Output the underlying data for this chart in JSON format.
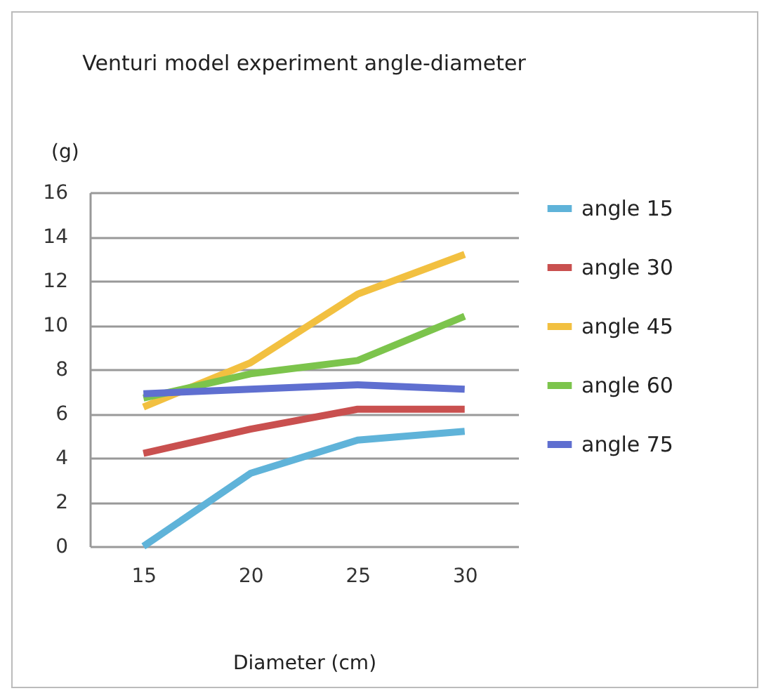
{
  "chart_data": {
    "type": "line",
    "title": "Venturi model experiment  angle-diameter",
    "xlabel": "Diameter (cm)",
    "ylabel": "(g)",
    "categories": [
      "15",
      "20",
      "25",
      "30"
    ],
    "series": [
      {
        "name": "angle  15",
        "color": "#5fb3d9",
        "values": [
          0,
          3.3,
          4.8,
          5.2
        ]
      },
      {
        "name": "angle  30",
        "color": "#c9504f",
        "values": [
          4.2,
          5.3,
          6.2,
          6.2
        ]
      },
      {
        "name": "angle  45",
        "color": "#f2c040",
        "values": [
          6.3,
          8.3,
          11.4,
          13.2
        ]
      },
      {
        "name": "angle  60",
        "color": "#7cc44c",
        "values": [
          6.7,
          7.8,
          8.4,
          10.4
        ]
      },
      {
        "name": "angle  75",
        "color": "#5f6fd0",
        "values": [
          6.9,
          7.1,
          7.3,
          7.1
        ]
      }
    ],
    "ylim": [
      0,
      16
    ],
    "yticks": [
      0,
      2,
      4,
      6,
      8,
      10,
      12,
      14,
      16
    ],
    "grid": "y",
    "legend": "right",
    "marker": "none",
    "line_style": "solid"
  }
}
